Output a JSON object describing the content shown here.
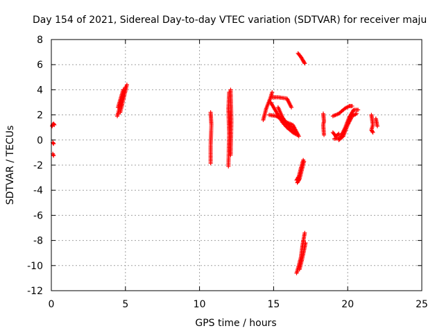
{
  "chart_data": {
    "type": "scatter",
    "title": "Day 154 of 2021, Sidereal Day-to-day VTEC variation (SDTVAR) for receiver maju",
    "xlabel": "GPS time / hours",
    "ylabel": "SDTVAR / TECUs",
    "xlim": [
      0,
      25
    ],
    "ylim": [
      -12,
      8
    ],
    "xticks": [
      "0",
      "5",
      "10",
      "15",
      "20",
      "25"
    ],
    "yticks": [
      "-12",
      "-10",
      "-8",
      "-6",
      "-4",
      "-2",
      "0",
      "2",
      "4",
      "6",
      "8"
    ],
    "grid": true,
    "marker": "+",
    "color": "#ff0000",
    "series": [
      {
        "name": "SDTVAR",
        "segments": [
          {
            "x": [
              0.05,
              0.1,
              0.15,
              0.2
            ],
            "y": [
              1.1,
              1.25,
              1.3,
              1.2
            ]
          },
          {
            "x": [
              0.1,
              0.15
            ],
            "y": [
              -0.2,
              -0.3
            ]
          },
          {
            "x": [
              0.1,
              0.15
            ],
            "y": [
              -1.1,
              -1.25
            ]
          },
          {
            "x": [
              4.45,
              5.0
            ],
            "y": [
              1.9,
              4.2
            ]
          },
          {
            "x": [
              4.65,
              5.1
            ],
            "y": [
              2.2,
              4.4
            ]
          },
          {
            "x": [
              4.5,
              4.85
            ],
            "y": [
              2.6,
              4.0
            ]
          },
          {
            "x": [
              10.75,
              10.8,
              10.75,
              10.75
            ],
            "y": [
              2.2,
              1.2,
              -0.45,
              -1.85
            ]
          },
          {
            "x": [
              11.95,
              12.0,
              11.95,
              12.0
            ],
            "y": [
              -2.1,
              0.5,
              2.5,
              3.8
            ]
          },
          {
            "x": [
              12.1,
              12.15,
              12.1
            ],
            "y": [
              -1.2,
              1.5,
              4.0
            ]
          },
          {
            "x": [
              14.3,
              14.5,
              14.8,
              14.9
            ],
            "y": [
              1.6,
              2.5,
              3.4,
              3.8
            ]
          },
          {
            "x": [
              14.9,
              15.3,
              15.9,
              16.2
            ],
            "y": [
              3.4,
              3.4,
              3.3,
              2.6
            ]
          },
          {
            "x": [
              14.7,
              15.2,
              15.7,
              16.3,
              16.7
            ],
            "y": [
              2.0,
              1.9,
              1.5,
              1.2,
              0.3
            ]
          },
          {
            "x": [
              14.8,
              15.2,
              15.6,
              15.9,
              16.3,
              16.6
            ],
            "y": [
              3.0,
              2.2,
              1.4,
              1.0,
              0.6,
              0.4
            ]
          },
          {
            "x": [
              15.3,
              15.6,
              15.9,
              16.2,
              16.5
            ],
            "y": [
              2.6,
              1.8,
              1.3,
              1.0,
              0.6
            ]
          },
          {
            "x": [
              16.6,
              16.75,
              16.9,
              17.05
            ],
            "y": [
              -3.4,
              -3.1,
              -2.4,
              -1.7
            ]
          },
          {
            "x": [
              16.55,
              16.7,
              16.85,
              17.0
            ],
            "y": [
              -3.2,
              -2.9,
              -2.2,
              -1.6
            ]
          },
          {
            "x": [
              16.65,
              16.85,
              17.0,
              17.1
            ],
            "y": [
              6.9,
              6.6,
              6.3,
              6.1
            ]
          },
          {
            "x": [
              16.55,
              16.7,
              16.85,
              16.95,
              17.1
            ],
            "y": [
              -10.6,
              -10.0,
              -9.3,
              -8.4,
              -7.4
            ]
          },
          {
            "x": [
              16.75,
              16.9,
              17.05,
              17.15
            ],
            "y": [
              -10.3,
              -9.6,
              -8.8,
              -8.2
            ]
          },
          {
            "x": [
              18.35,
              18.4,
              18.35,
              18.4
            ],
            "y": [
              2.1,
              1.5,
              1.2,
              0.4
            ]
          },
          {
            "x": [
              19.0,
              19.4,
              19.8,
              20.1,
              20.3
            ],
            "y": [
              1.9,
              2.1,
              2.5,
              2.7,
              2.7
            ]
          },
          {
            "x": [
              19.1,
              19.5,
              19.8,
              20.1,
              20.4,
              20.7
            ],
            "y": [
              0.1,
              0.2,
              0.9,
              1.8,
              2.4,
              2.4
            ]
          },
          {
            "x": [
              19.4,
              19.7,
              20.0,
              20.3,
              20.6
            ],
            "y": [
              0.0,
              0.3,
              1.2,
              1.9,
              2.1
            ]
          },
          {
            "x": [
              19.0,
              19.2,
              19.4
            ],
            "y": [
              0.6,
              0.3,
              0.5
            ]
          },
          {
            "x": [
              21.6,
              21.65,
              21.7,
              21.6,
              21.7
            ],
            "y": [
              2.0,
              1.6,
              1.2,
              0.8,
              0.6
            ]
          },
          {
            "x": [
              21.9,
              21.95,
              22.0
            ],
            "y": [
              1.7,
              1.4,
              1.1
            ]
          }
        ]
      }
    ]
  }
}
